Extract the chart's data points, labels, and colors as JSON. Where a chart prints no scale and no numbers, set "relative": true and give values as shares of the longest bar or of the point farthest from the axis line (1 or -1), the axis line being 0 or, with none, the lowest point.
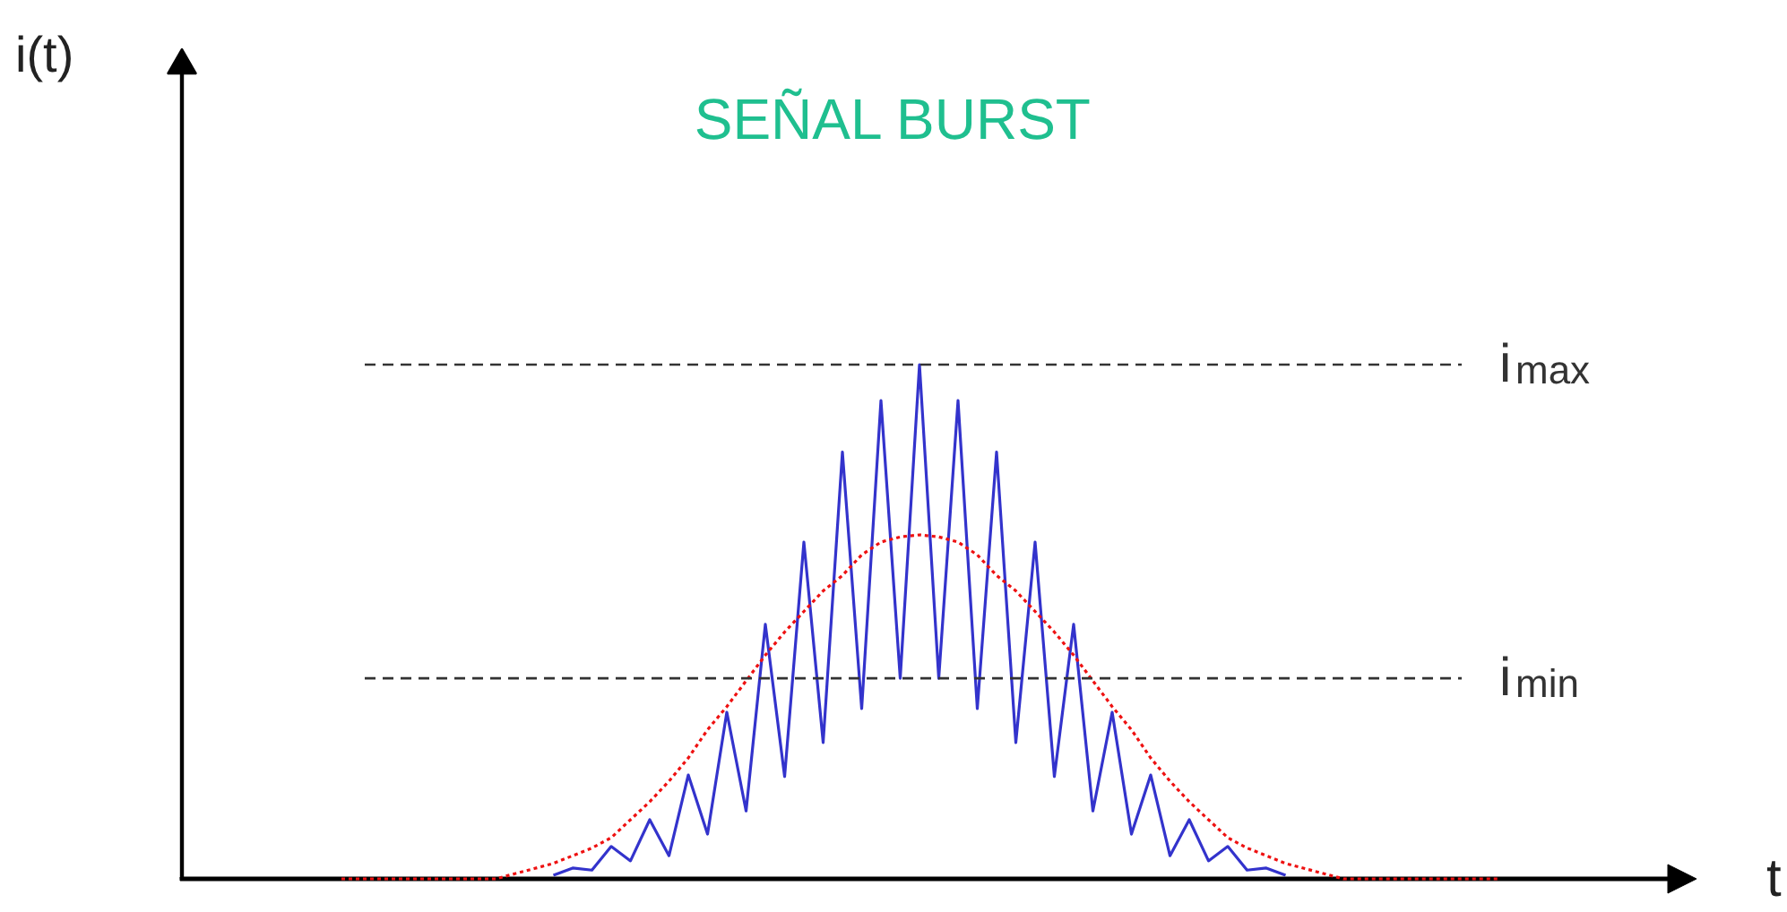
{
  "chart_data": {
    "type": "line",
    "relative": true,
    "title": "SEÑAL BURST",
    "xlabel": "t",
    "annotations": [
      "i(t)"
    ],
    "grid": false,
    "marker": "none",
    "categories": [
      null,
      null,
      null,
      null,
      null,
      null,
      null,
      null,
      null,
      null,
      null,
      null,
      null,
      null,
      null,
      null,
      null,
      null,
      null,
      null,
      null,
      null,
      null,
      null,
      null,
      null,
      null,
      null,
      null,
      null,
      null,
      null,
      null,
      null,
      null,
      null,
      null,
      null,
      null,
      null,
      null,
      null,
      null,
      null,
      null,
      null,
      null,
      null,
      null,
      null,
      null,
      null,
      null,
      null,
      null,
      null,
      null,
      null,
      null,
      null,
      null
    ],
    "series": [
      {
        "color": "#3333cc",
        "line_style": "solid",
        "values": [
          null,
          null,
          null,
          null,
          null,
          null,
          null,
          null,
          null,
          null,
          null,
          0.007,
          0.021,
          0.017,
          0.063,
          0.035,
          0.115,
          0.045,
          0.202,
          0.087,
          0.324,
          0.132,
          0.495,
          0.199,
          0.655,
          0.265,
          0.83,
          0.331,
          0.93,
          0.39,
          1.0,
          0.39,
          0.93,
          0.331,
          0.83,
          0.265,
          0.655,
          0.199,
          0.495,
          0.132,
          0.324,
          0.087,
          0.202,
          0.045,
          0.115,
          0.035,
          0.063,
          0.017,
          0.021,
          0.007,
          null,
          null,
          null,
          null,
          null,
          null,
          null,
          null,
          null,
          null,
          null
        ]
      },
      {
        "color": "#ee1111",
        "line_style": "dotted",
        "values": [
          0,
          0,
          0,
          0,
          0,
          0,
          0,
          0,
          0,
          0.01,
          0.02,
          0.03,
          0.045,
          0.06,
          0.08,
          0.115,
          0.15,
          0.19,
          0.235,
          0.29,
          0.335,
          0.385,
          0.435,
          0.48,
          0.52,
          0.56,
          0.59,
          0.63,
          0.655,
          0.665,
          0.669,
          0.665,
          0.655,
          0.63,
          0.59,
          0.56,
          0.52,
          0.48,
          0.435,
          0.385,
          0.335,
          0.29,
          0.235,
          0.19,
          0.15,
          0.115,
          0.08,
          0.06,
          0.045,
          0.03,
          0.02,
          0.01,
          0,
          0,
          0,
          0,
          0,
          0,
          0,
          0,
          0
        ]
      }
    ],
    "ref_lines": [
      {
        "axis": "y",
        "value": 1.0,
        "label": "i$_{max}$",
        "color": "#333333",
        "line_style": "dashed"
      },
      {
        "axis": "y",
        "value": 0.39,
        "label": "i$_{min}$",
        "color": "#333333",
        "line_style": "dashed"
      }
    ]
  }
}
